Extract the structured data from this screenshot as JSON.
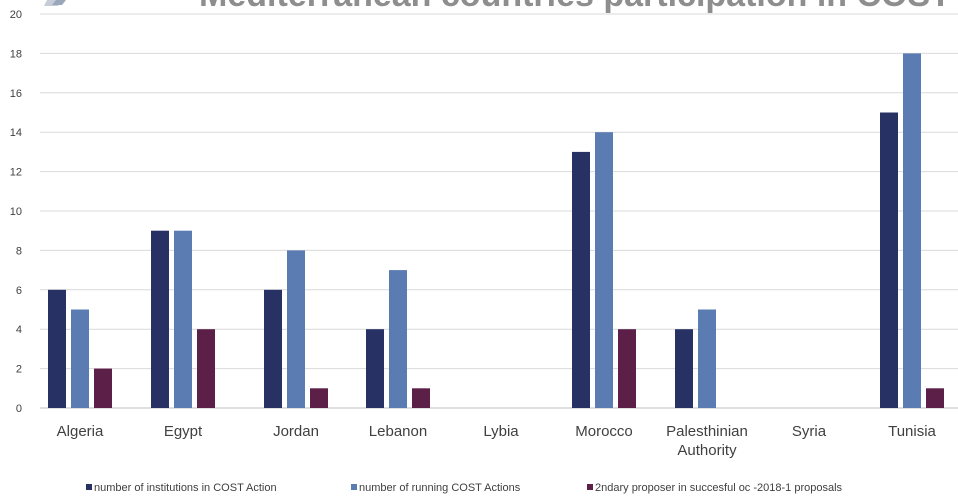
{
  "chart_data": {
    "type": "bar",
    "title": "Mediterranean countries participation in COST",
    "xlabel": "",
    "ylabel": "",
    "ylim": [
      0,
      20
    ],
    "yticks": [
      0,
      2,
      4,
      6,
      8,
      10,
      12,
      14,
      16,
      18,
      20
    ],
    "grid": true,
    "legend_position": "bottom",
    "categories": [
      [
        "Algeria"
      ],
      [
        "Egypt"
      ],
      [
        "Jordan"
      ],
      [
        "Lebanon"
      ],
      [
        "Lybia"
      ],
      [
        "Morocco"
      ],
      [
        "Palesthinian",
        "Authority"
      ],
      [
        "Syria"
      ],
      [
        "Tunisia"
      ]
    ],
    "series": [
      {
        "name": "number of institutions in COST Action",
        "color": "#283163",
        "values": [
          6,
          9,
          6,
          4,
          0,
          13,
          4,
          0,
          15
        ]
      },
      {
        "name": "number of running COST Actions",
        "color": "#5b7bb3",
        "values": [
          5,
          9,
          8,
          7,
          0,
          14,
          5,
          0,
          18
        ]
      },
      {
        "name": "2ndary proposer in succesful oc -2018-1 proposals",
        "color": "#5c1f47",
        "values": [
          2,
          4,
          1,
          1,
          0,
          4,
          0,
          0,
          1
        ]
      }
    ]
  }
}
